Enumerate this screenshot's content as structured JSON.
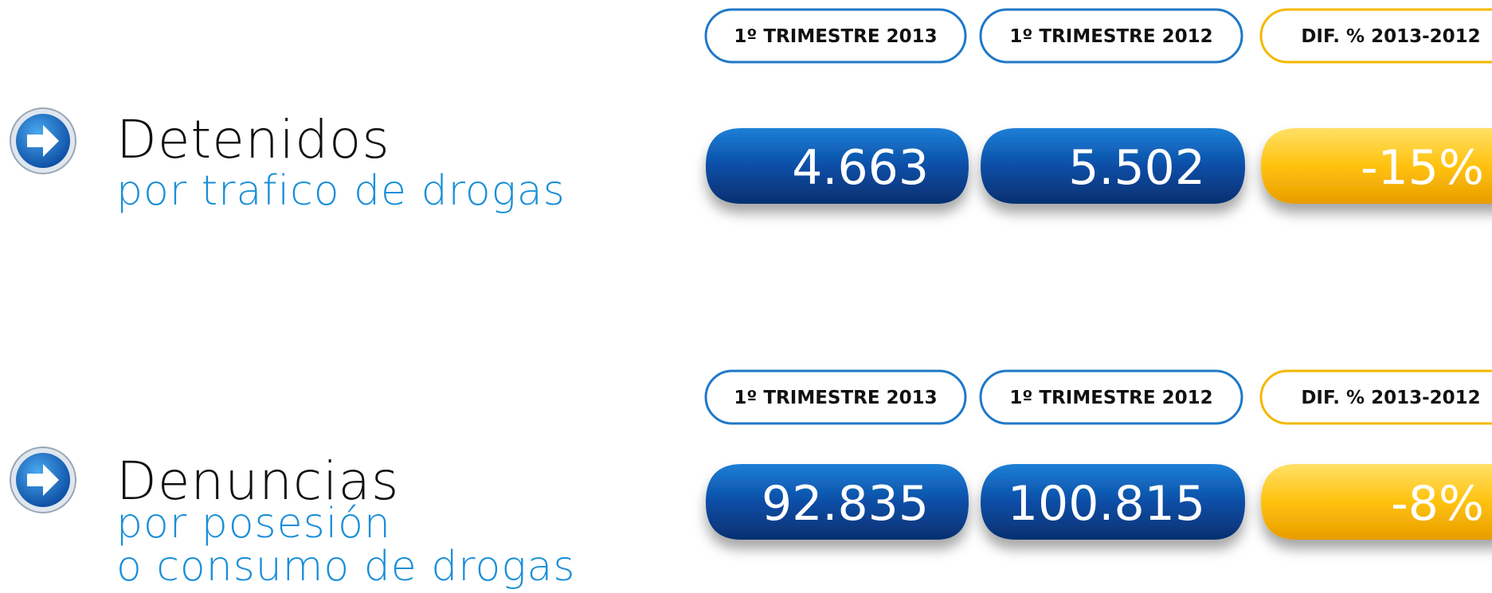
{
  "sections": [
    {
      "title": "Detenidos",
      "subtitle": [
        "por trafico de drogas"
      ],
      "headers": [
        "1º TRIMESTRE 2013",
        "1º TRIMESTRE 2012",
        "DIF. %  2013-2012"
      ],
      "values": [
        "4.663",
        "5.502",
        "-15%"
      ]
    },
    {
      "title": "Denuncias",
      "subtitle": [
        "por posesión",
        "o consumo de drogas"
      ],
      "headers": [
        "1º TRIMESTRE 2013",
        "1º TRIMESTRE 2012",
        "DIF. %  2013-2012"
      ],
      "values": [
        "92.835",
        "100.815",
        "-8%"
      ]
    }
  ]
}
